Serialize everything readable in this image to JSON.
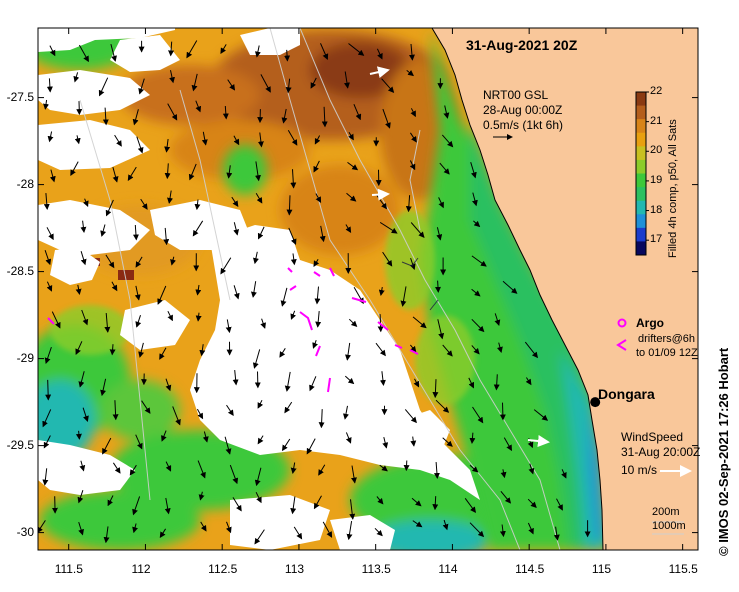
{
  "title": "31-Aug-2021 20Z",
  "current_legend": {
    "line1": "NRT00 GSL",
    "line2": "28-Aug 00:00Z",
    "line3": "0.5m/s (1kt 6h)"
  },
  "colorbar": {
    "label": "Filled 4h comp, p50, All Sats",
    "ticks": [
      "22",
      "21",
      "20",
      "19",
      "18",
      "17"
    ],
    "min": 16.5,
    "max": 22,
    "colors": [
      "#08085e",
      "#1a3ccc",
      "#1e90d8",
      "#22b8b0",
      "#2cc060",
      "#3ec83a",
      "#8ccc2a",
      "#c8c020",
      "#e8a010",
      "#d88418",
      "#b45e1c",
      "#8a3a12"
    ]
  },
  "argo": {
    "title": "Argo",
    "drifter_line1": "drifters@6h",
    "drifter_line2": "to 01/09 12Z",
    "color": "#ff00ff"
  },
  "place": {
    "name": "Dongara",
    "lon": 114.93,
    "lat": -29.25
  },
  "wind_legend": {
    "line1": "WindSpeed",
    "line2": "31-Aug 20:00Z",
    "line3": "10 m/s"
  },
  "isobath": {
    "line1": "200m",
    "line2": "1000m"
  },
  "credit": "© IMOS 02-Sep-2021 17:26 Hobart",
  "axes": {
    "lon_ticks": [
      "111.5",
      "112",
      "112.5",
      "113",
      "113.5",
      "114",
      "114.5",
      "115",
      "115.5"
    ],
    "lat_ticks": [
      "-27.5",
      "-28",
      "-28.5",
      "-29",
      "-29.5",
      "-30"
    ],
    "lon_range": [
      111.3,
      115.6
    ],
    "lat_range": [
      -30.1,
      -27.1
    ]
  },
  "colors": {
    "land": "#f9c79a",
    "cloud": "#ffffff",
    "sst_warm": "#e8a010",
    "sst_hot": "#b45e1c",
    "sst_cool": "#3ec83a",
    "sst_cold": "#22b8b0"
  }
}
